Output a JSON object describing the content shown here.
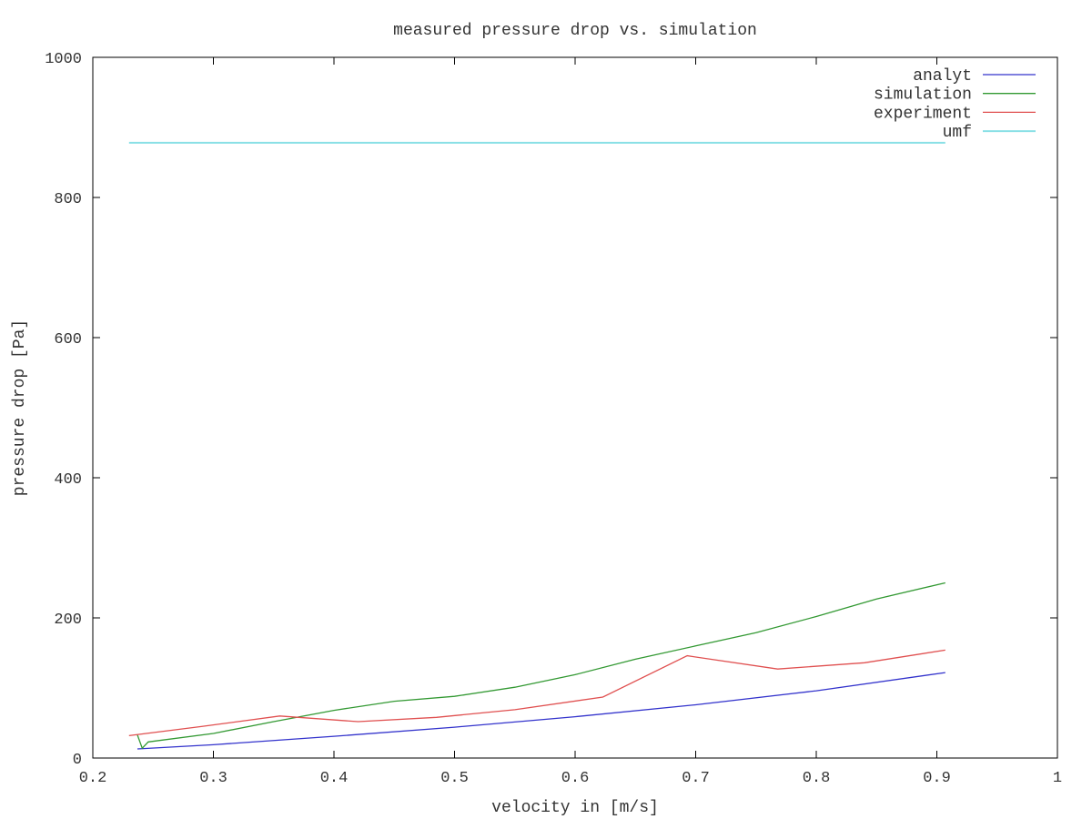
{
  "chart_data": {
    "type": "line",
    "title": "measured pressure drop vs. simulation",
    "xlabel": "velocity in [m/s]",
    "ylabel": "pressure drop [Pa]",
    "xlim": [
      0.2,
      1.0
    ],
    "ylim": [
      0,
      1000
    ],
    "xticks": [
      "0.2",
      "0.3",
      "0.4",
      "0.5",
      "0.6",
      "0.7",
      "0.8",
      "0.9",
      "1"
    ],
    "xtick_values": [
      0.2,
      0.3,
      0.4,
      0.5,
      0.6,
      0.7,
      0.8,
      0.9,
      1.0
    ],
    "yticks": [
      "0",
      "200",
      "400",
      "600",
      "800",
      "1000"
    ],
    "ytick_values": [
      0,
      200,
      400,
      600,
      800,
      1000
    ],
    "grid": false,
    "legend_position": "top-right",
    "series": [
      {
        "name": "analyt",
        "color": "#3333cc",
        "x": [
          0.237,
          0.3,
          0.4,
          0.5,
          0.6,
          0.7,
          0.8,
          0.907
        ],
        "y": [
          13,
          19,
          31,
          44,
          59,
          76,
          96,
          122
        ]
      },
      {
        "name": "simulation",
        "color": "#339933",
        "x": [
          0.237,
          0.241,
          0.246,
          0.3,
          0.35,
          0.4,
          0.45,
          0.5,
          0.55,
          0.6,
          0.65,
          0.7,
          0.75,
          0.8,
          0.85,
          0.907
        ],
        "y": [
          33,
          14,
          23,
          35,
          52,
          68,
          81,
          88,
          101,
          119,
          141,
          160,
          179,
          202,
          227,
          250
        ]
      },
      {
        "name": "experiment",
        "color": "#e05050",
        "x": [
          0.23,
          0.29,
          0.355,
          0.42,
          0.485,
          0.55,
          0.623,
          0.693,
          0.768,
          0.84,
          0.907
        ],
        "y": [
          32,
          45,
          60,
          52,
          58,
          69,
          87,
          146,
          127,
          136,
          154
        ]
      },
      {
        "name": "umf",
        "color": "#8ae0e6",
        "x": [
          0.23,
          0.907
        ],
        "y": [
          878,
          878
        ]
      }
    ]
  }
}
